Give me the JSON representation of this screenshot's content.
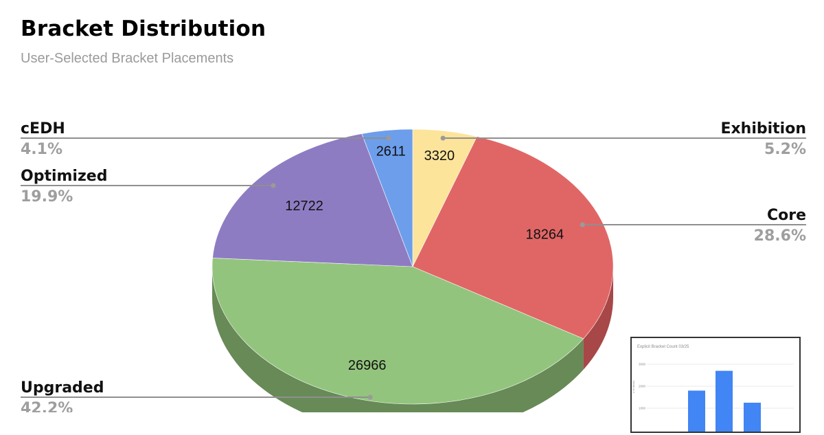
{
  "title": "Bracket Distribution",
  "subtitle": "User-Selected Bracket Placements",
  "chart_data": {
    "type": "pie",
    "title": "Bracket Distribution",
    "subtitle": "User-Selected Bracket Placements",
    "legend": "callouts",
    "slices": [
      {
        "name": "Exhibition",
        "value": 3320,
        "label": "3320",
        "percent": "5.2%",
        "color": "#fce49a",
        "side_color": "#c9b47a"
      },
      {
        "name": "Core",
        "value": 18264,
        "label": "18264",
        "percent": "28.6%",
        "color": "#e06666",
        "side_color": "#a84747"
      },
      {
        "name": "Upgraded",
        "value": 26966,
        "label": "26966",
        "percent": "42.2%",
        "color": "#93c47d",
        "side_color": "#678a57"
      },
      {
        "name": "Optimized",
        "value": 12722,
        "label": "12722",
        "percent": "19.9%",
        "color": "#8e7cc3",
        "side_color": "#665a8c"
      },
      {
        "name": "cEDH",
        "value": 2611,
        "label": "2611",
        "percent": "4.1%",
        "color": "#6d9eeb",
        "side_color": "#4e72a8"
      }
    ]
  },
  "inset_chart": {
    "type": "bar",
    "title": "Explicit Bracket Count 03/25",
    "y_ticks": [
      "3000",
      "2000",
      "1000"
    ],
    "ylim": [
      0,
      3500
    ],
    "values": [
      1800,
      2700,
      1250
    ],
    "bar_color": "#4285f4"
  }
}
